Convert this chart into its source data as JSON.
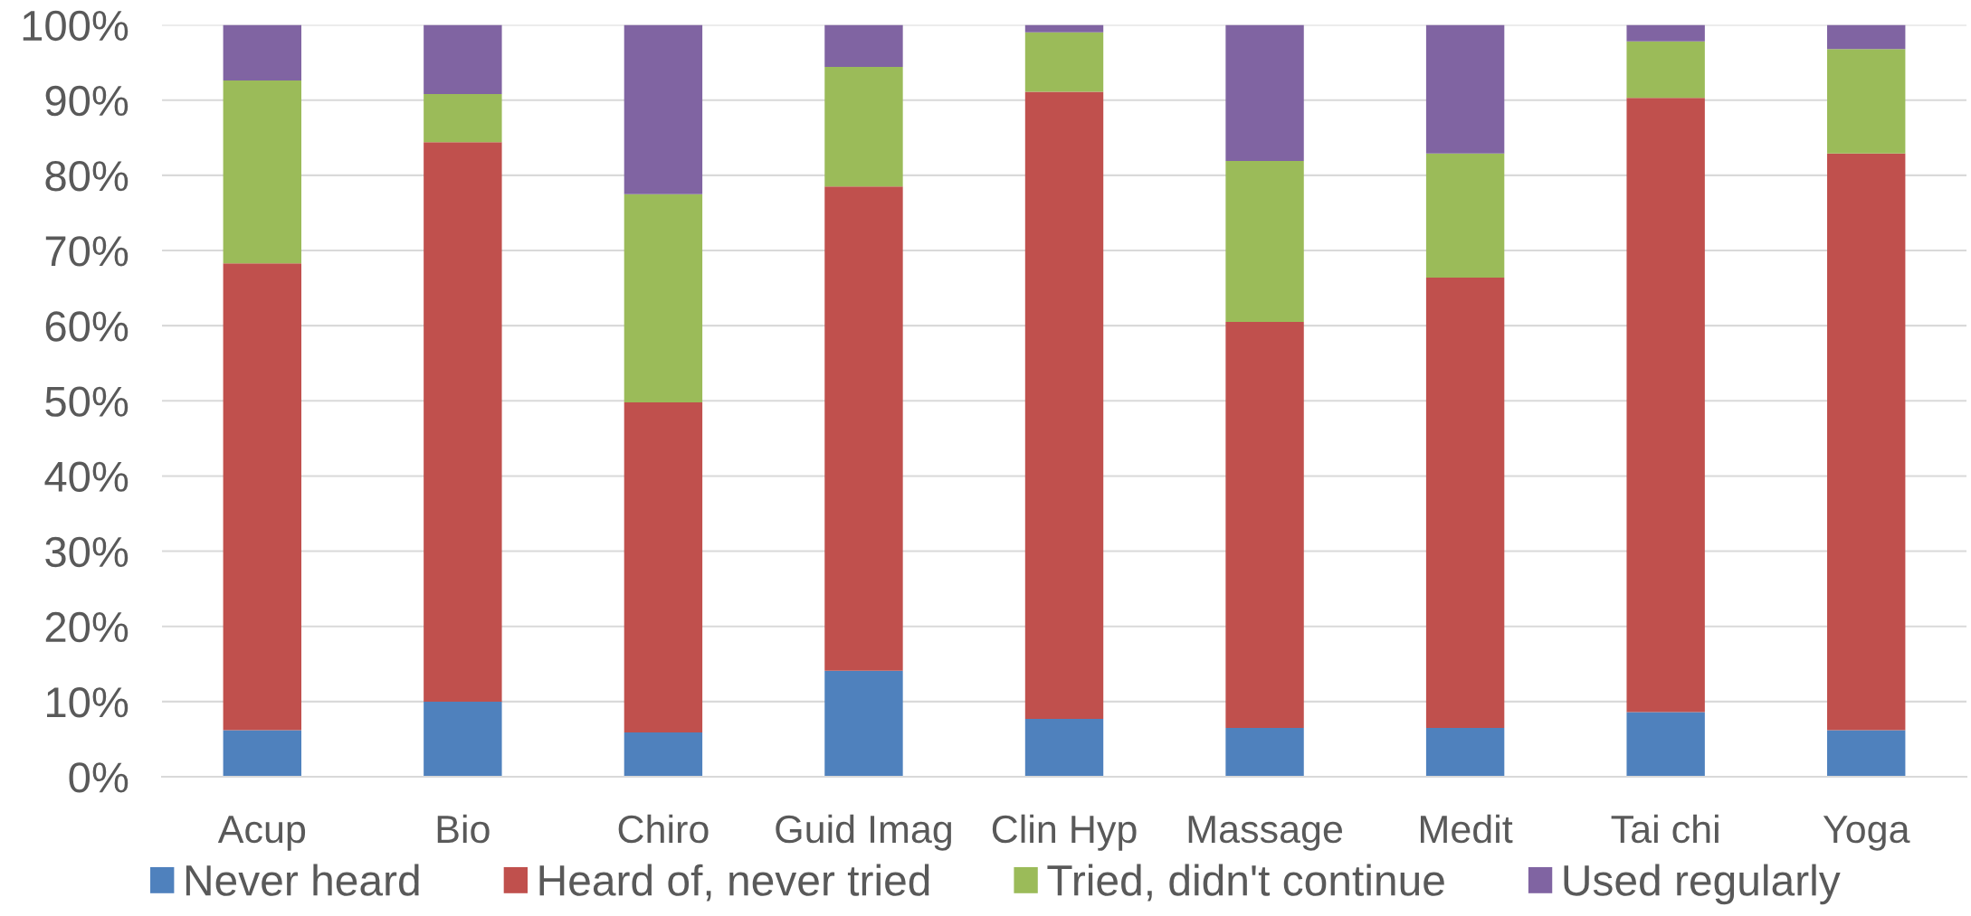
{
  "chart_data": {
    "type": "bar",
    "stacked": true,
    "categories": [
      "Acup",
      "Bio",
      "Chiro",
      "Guid Imag",
      "Clin Hyp",
      "Massage",
      "Medit",
      "Tai chi",
      "Yoga"
    ],
    "series": [
      {
        "name": "Never heard",
        "color": "#4f81bd",
        "values": [
          6.2,
          10.0,
          5.9,
          14.1,
          7.7,
          6.5,
          6.5,
          8.6,
          6.2
        ]
      },
      {
        "name": "Heard of, never tried",
        "color": "#c0504d",
        "values": [
          62.1,
          74.4,
          43.9,
          64.4,
          83.4,
          54.0,
          59.9,
          81.7,
          76.7
        ]
      },
      {
        "name": "Tried, didn't continue",
        "color": "#9bbb59",
        "values": [
          24.3,
          6.4,
          27.7,
          15.9,
          7.9,
          21.4,
          16.5,
          7.5,
          13.9
        ]
      },
      {
        "name": "Used regularly",
        "color": "#8064a2",
        "values": [
          7.4,
          9.2,
          22.5,
          5.6,
          1.0,
          18.1,
          17.1,
          2.2,
          3.2
        ]
      }
    ],
    "ylim": [
      0,
      100
    ],
    "yticks": [
      {
        "value": 0,
        "label": "0%"
      },
      {
        "value": 10,
        "label": "10%"
      },
      {
        "value": 20,
        "label": "20%"
      },
      {
        "value": 30,
        "label": "30%"
      },
      {
        "value": 40,
        "label": "40%"
      },
      {
        "value": 50,
        "label": "50%"
      },
      {
        "value": 60,
        "label": "60%"
      },
      {
        "value": 70,
        "label": "70%"
      },
      {
        "value": 80,
        "label": "80%"
      },
      {
        "value": 90,
        "label": "90%"
      },
      {
        "value": 100,
        "label": "100%"
      }
    ],
    "grid": "y",
    "legend": "bottom"
  }
}
